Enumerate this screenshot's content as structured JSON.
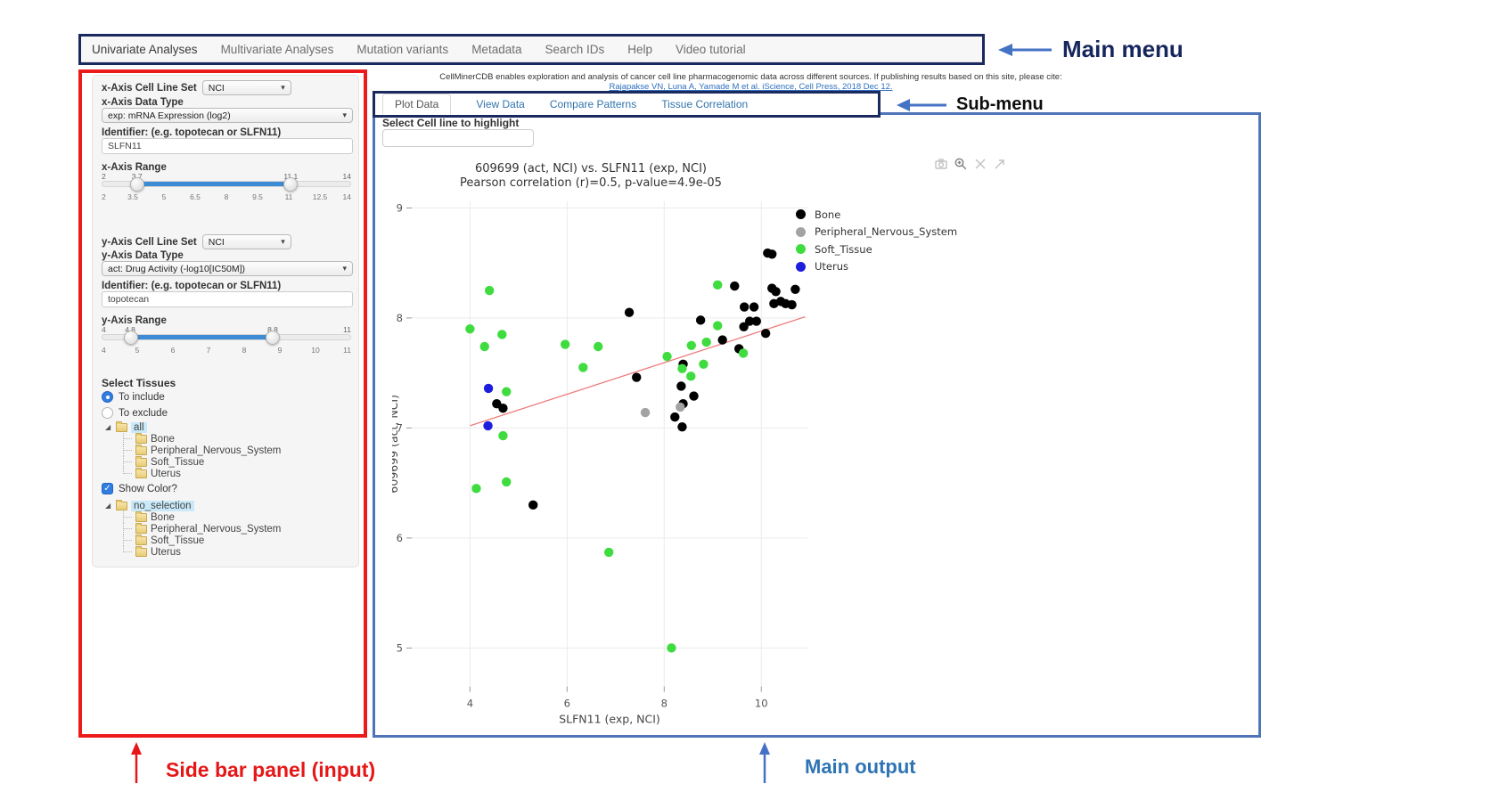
{
  "annotations": {
    "main_menu": "Main menu",
    "sub_menu": "Sub-menu",
    "sidebar_panel": "Side bar panel (input)",
    "main_output": "Main output"
  },
  "main_menu": {
    "items": [
      {
        "label": "Univariate Analyses",
        "active": true
      },
      {
        "label": "Multivariate Analyses",
        "active": false
      },
      {
        "label": "Mutation variants",
        "active": false
      },
      {
        "label": "Metadata",
        "active": false
      },
      {
        "label": "Search IDs",
        "active": false
      },
      {
        "label": "Help",
        "active": false
      },
      {
        "label": "Video tutorial",
        "active": false
      }
    ]
  },
  "citation": {
    "text": "CellMinerCDB enables exploration and analysis of cancer cell line pharmacogenomic data across different sources. If publishing results based on this site, please cite:",
    "reference": "Rajapakse VN, Luna A, Yamade M et al. iScience, Cell Press, 2018 Dec 12."
  },
  "submenu": {
    "tabs": [
      {
        "label": "Plot Data",
        "active": true
      },
      {
        "label": "View Data",
        "active": false
      },
      {
        "label": "Compare Patterns",
        "active": false
      },
      {
        "label": "Tissue Correlation",
        "active": false
      }
    ]
  },
  "sidebar": {
    "x_axis": {
      "cell_line_set_label": "x-Axis Cell Line Set",
      "cell_line_set_value": "NCI",
      "data_type_label": "x-Axis Data Type",
      "data_type_value": "exp: mRNA Expression (log2)",
      "identifier_label": "Identifier: (e.g. topotecan or SLFN11)",
      "identifier_value": "SLFN11",
      "range_label": "x-Axis Range",
      "range": {
        "min": 2,
        "max": 14,
        "from": 3.7,
        "to": 11.1,
        "ticks": [
          "2",
          "3.5",
          "5",
          "6.5",
          "8",
          "9.5",
          "11",
          "12.5",
          "14"
        ]
      }
    },
    "y_axis": {
      "cell_line_set_label": "y-Axis Cell Line Set",
      "cell_line_set_value": "NCI",
      "data_type_label": "y-Axis Data Type",
      "data_type_value": "act: Drug Activity (-log10[IC50M])",
      "identifier_label": "Identifier: (e.g. topotecan or SLFN11)",
      "identifier_value": "topotecan",
      "range_label": "y-Axis Range",
      "range": {
        "min": 4,
        "max": 11,
        "from": 4.8,
        "to": 8.8,
        "ticks": [
          "4",
          "5",
          "6",
          "7",
          "8",
          "9",
          "10",
          "11"
        ]
      }
    },
    "tissues": {
      "label": "Select Tissues",
      "radios": [
        {
          "label": "To include",
          "selected": true
        },
        {
          "label": "To exclude",
          "selected": false
        }
      ],
      "include_tree": {
        "root": "all",
        "children": [
          "Bone",
          "Peripheral_Nervous_System",
          "Soft_Tissue",
          "Uterus"
        ]
      },
      "show_color_label": "Show Color?",
      "show_color_checked": true,
      "color_tree": {
        "root": "no_selection",
        "children": [
          "Bone",
          "Peripheral_Nervous_System",
          "Soft_Tissue",
          "Uterus"
        ]
      }
    }
  },
  "main_output": {
    "highlight_label": "Select Cell line to highlight",
    "highlight_value": "",
    "toolbar_icons": [
      "camera-icon",
      "zoom-icon",
      "pan-icon",
      "reset-axes-icon"
    ]
  },
  "chart_data": {
    "type": "scatter",
    "title": "609699 (act, NCI) vs. SLFN11 (exp, NCI)",
    "subtitle": "Pearson correlation (r)=0.5, p-value=4.9e-05",
    "xlabel": "SLFN11 (exp, NCI)",
    "ylabel": "609699 (act, NCI)",
    "xlim": [
      2.8,
      10.95
    ],
    "ylim": [
      4.65,
      9.06
    ],
    "xticks": [
      4,
      6,
      8,
      10
    ],
    "yticks": [
      5,
      6,
      7,
      8,
      9
    ],
    "grid": true,
    "legend_position": "right",
    "trend_line": {
      "color": "#ef7d7d",
      "x": [
        4.0,
        10.9
      ],
      "y": [
        7.02,
        8.01
      ]
    },
    "series": [
      {
        "name": "Bone",
        "color": "#000000",
        "points": [
          [
            7.28,
            8.05
          ],
          [
            4.55,
            7.22
          ],
          [
            4.68,
            7.18
          ],
          [
            7.43,
            7.46
          ],
          [
            5.3,
            6.3
          ],
          [
            8.39,
            7.58
          ],
          [
            8.35,
            7.38
          ],
          [
            8.61,
            7.29
          ],
          [
            8.39,
            7.22
          ],
          [
            8.22,
            7.1
          ],
          [
            8.37,
            7.01
          ],
          [
            9.2,
            7.8
          ],
          [
            9.54,
            7.72
          ],
          [
            8.75,
            7.98
          ],
          [
            9.45,
            8.29
          ],
          [
            9.65,
            8.1
          ],
          [
            9.85,
            8.1
          ],
          [
            9.76,
            7.97
          ],
          [
            9.9,
            7.97
          ],
          [
            9.64,
            7.92
          ],
          [
            10.09,
            7.86
          ],
          [
            10.13,
            8.59
          ],
          [
            10.22,
            8.58
          ],
          [
            10.22,
            8.27
          ],
          [
            10.3,
            8.24
          ],
          [
            10.7,
            8.26
          ],
          [
            10.26,
            8.13
          ],
          [
            10.4,
            8.15
          ],
          [
            10.5,
            8.13
          ],
          [
            10.63,
            8.12
          ]
        ]
      },
      {
        "name": "Peripheral_Nervous_System",
        "color": "#a3a3a3",
        "points": [
          [
            7.61,
            7.14
          ],
          [
            8.33,
            7.19
          ]
        ]
      },
      {
        "name": "Soft_Tissue",
        "color": "#3fdc3f",
        "points": [
          [
            4.4,
            8.25
          ],
          [
            4.0,
            7.9
          ],
          [
            4.66,
            7.85
          ],
          [
            4.3,
            7.74
          ],
          [
            5.96,
            7.76
          ],
          [
            6.64,
            7.74
          ],
          [
            6.33,
            7.55
          ],
          [
            4.75,
            7.33
          ],
          [
            4.68,
            6.93
          ],
          [
            4.13,
            6.45
          ],
          [
            4.75,
            6.51
          ],
          [
            6.86,
            5.87
          ],
          [
            8.15,
            5.0
          ],
          [
            8.06,
            7.65
          ],
          [
            8.56,
            7.75
          ],
          [
            8.87,
            7.78
          ],
          [
            9.63,
            7.68
          ],
          [
            8.37,
            7.54
          ],
          [
            8.81,
            7.58
          ],
          [
            8.55,
            7.47
          ],
          [
            9.1,
            8.3
          ],
          [
            9.1,
            7.93
          ]
        ]
      },
      {
        "name": "Uterus",
        "color": "#1d1ddd",
        "points": [
          [
            4.38,
            7.36
          ],
          [
            4.37,
            7.02
          ]
        ]
      }
    ]
  }
}
